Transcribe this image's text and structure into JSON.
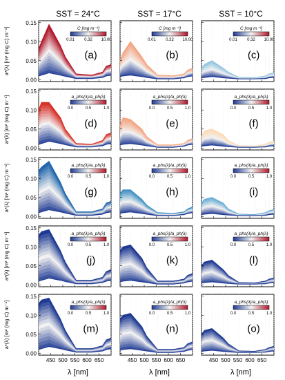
{
  "figure": {
    "column_titles": [
      "SST = 24°C",
      "SST = 17°C",
      "SST = 10°C"
    ],
    "ylabel": "a*(λ) [m² (mg C) m⁻¹]",
    "xlabel": "λ [nm]",
    "xticks": [
      "450",
      "500",
      "550",
      "600",
      "650"
    ],
    "yticks": [
      "0.00",
      "0.05",
      "0.10",
      "0.15"
    ],
    "colorbar_ticks_c": [
      "0.01",
      "0.32",
      "10.00"
    ],
    "colorbar_ticks_ratio": [
      "0.0",
      "0.5",
      "1.0"
    ],
    "colorbar_titles": {
      "row1": "C [mg m⁻³]",
      "row2": "a_phs(λ)/a_ph(λ)",
      "row3": "a_phs(λ)/a_ph(λ)",
      "row4": "a_phs(λ)/a_ph(λ)",
      "row5": "a_phs(λ)/a_ph(λ)"
    },
    "colors": {
      "low": "#1f3a93",
      "mid": "#f2f2f2",
      "high": "#b2182b",
      "panel_border": "#000000"
    }
  },
  "chart_data": {
    "type": "area",
    "x": [
      400,
      412,
      443,
      490,
      510,
      555,
      620,
      665,
      680,
      700
    ],
    "xlim": [
      400,
      700
    ],
    "ylim": [
      -0.005,
      0.155
    ],
    "panels": [
      {
        "label": "(a)",
        "upper": [
          0.08,
          0.1,
          0.145,
          0.09,
          0.06,
          0.015,
          0.012,
          0.02,
          0.035,
          0.04
        ],
        "lower": [
          0.01,
          0.012,
          0.018,
          0.012,
          0.009,
          0.003,
          0.003,
          0.006,
          0.01,
          0.012
        ]
      },
      {
        "label": "(b)",
        "upper": [
          0.05,
          0.07,
          0.1,
          0.06,
          0.04,
          0.012,
          0.01,
          0.015,
          0.025,
          0.03
        ],
        "lower": [
          0.008,
          0.01,
          0.012,
          0.008,
          0.006,
          0.002,
          0.002,
          0.005,
          0.008,
          0.01
        ]
      },
      {
        "label": "(c)",
        "upper": [
          0.03,
          0.04,
          0.05,
          0.03,
          0.02,
          0.006,
          0.005,
          0.01,
          0.015,
          0.018
        ],
        "lower": [
          0.005,
          0.006,
          0.008,
          0.005,
          0.004,
          0.002,
          0.002,
          0.003,
          0.005,
          0.006
        ]
      },
      {
        "label": "(d)",
        "upper": [
          0.1,
          0.12,
          0.12,
          0.08,
          0.05,
          0.012,
          0.01,
          0.02,
          0.035,
          0.04
        ],
        "lower": [
          0.01,
          0.012,
          0.018,
          0.012,
          0.009,
          0.003,
          0.003,
          0.006,
          0.01,
          0.012
        ]
      },
      {
        "label": "(e)",
        "upper": [
          0.06,
          0.08,
          0.075,
          0.05,
          0.03,
          0.008,
          0.008,
          0.012,
          0.02,
          0.025
        ],
        "lower": [
          0.008,
          0.01,
          0.012,
          0.008,
          0.006,
          0.002,
          0.002,
          0.005,
          0.008,
          0.01
        ]
      },
      {
        "label": "(f)",
        "upper": [
          0.03,
          0.045,
          0.05,
          0.035,
          0.02,
          0.006,
          0.005,
          0.01,
          0.015,
          0.018
        ],
        "lower": [
          0.005,
          0.006,
          0.008,
          0.005,
          0.004,
          0.002,
          0.002,
          0.003,
          0.005,
          0.006
        ]
      },
      {
        "label": "(g)",
        "upper": [
          0.12,
          0.13,
          0.145,
          0.09,
          0.06,
          0.012,
          0.012,
          0.02,
          0.035,
          0.04
        ],
        "lower": [
          0.01,
          0.012,
          0.018,
          0.012,
          0.009,
          0.003,
          0.003,
          0.006,
          0.01,
          0.012
        ]
      },
      {
        "label": "(h)",
        "upper": [
          0.06,
          0.07,
          0.07,
          0.045,
          0.03,
          0.01,
          0.008,
          0.012,
          0.02,
          0.025
        ],
        "lower": [
          0.008,
          0.01,
          0.012,
          0.008,
          0.006,
          0.002,
          0.002,
          0.005,
          0.008,
          0.01
        ]
      },
      {
        "label": "(i)",
        "upper": [
          0.035,
          0.045,
          0.05,
          0.035,
          0.02,
          0.006,
          0.005,
          0.01,
          0.015,
          0.018
        ],
        "lower": [
          0.005,
          0.006,
          0.008,
          0.005,
          0.004,
          0.002,
          0.002,
          0.003,
          0.005,
          0.006
        ]
      },
      {
        "label": "(j)",
        "upper": [
          0.13,
          0.14,
          0.145,
          0.09,
          0.06,
          0.012,
          0.012,
          0.02,
          0.035,
          0.04
        ],
        "lower": [
          0.01,
          0.012,
          0.018,
          0.012,
          0.009,
          0.003,
          0.003,
          0.006,
          0.01,
          0.012
        ]
      },
      {
        "label": "(k)",
        "upper": [
          0.09,
          0.1,
          0.105,
          0.07,
          0.045,
          0.01,
          0.01,
          0.015,
          0.025,
          0.03
        ],
        "lower": [
          0.008,
          0.01,
          0.012,
          0.008,
          0.006,
          0.002,
          0.002,
          0.005,
          0.008,
          0.01
        ]
      },
      {
        "label": "(l)",
        "upper": [
          0.05,
          0.06,
          0.065,
          0.04,
          0.025,
          0.006,
          0.005,
          0.01,
          0.015,
          0.018
        ],
        "lower": [
          0.005,
          0.006,
          0.008,
          0.005,
          0.004,
          0.002,
          0.002,
          0.003,
          0.005,
          0.006
        ]
      },
      {
        "label": "(m)",
        "upper": [
          0.13,
          0.14,
          0.145,
          0.09,
          0.06,
          0.012,
          0.012,
          0.02,
          0.035,
          0.04
        ],
        "lower": [
          0.01,
          0.012,
          0.018,
          0.012,
          0.009,
          0.003,
          0.003,
          0.006,
          0.01,
          0.012
        ]
      },
      {
        "label": "(n)",
        "upper": [
          0.09,
          0.1,
          0.105,
          0.07,
          0.045,
          0.01,
          0.01,
          0.015,
          0.025,
          0.03
        ],
        "lower": [
          0.008,
          0.01,
          0.012,
          0.008,
          0.006,
          0.002,
          0.002,
          0.005,
          0.008,
          0.01
        ]
      },
      {
        "label": "(o)",
        "upper": [
          0.05,
          0.06,
          0.065,
          0.04,
          0.025,
          0.006,
          0.005,
          0.01,
          0.015,
          0.018
        ],
        "lower": [
          0.005,
          0.006,
          0.008,
          0.005,
          0.004,
          0.002,
          0.002,
          0.003,
          0.005,
          0.006
        ]
      }
    ]
  }
}
